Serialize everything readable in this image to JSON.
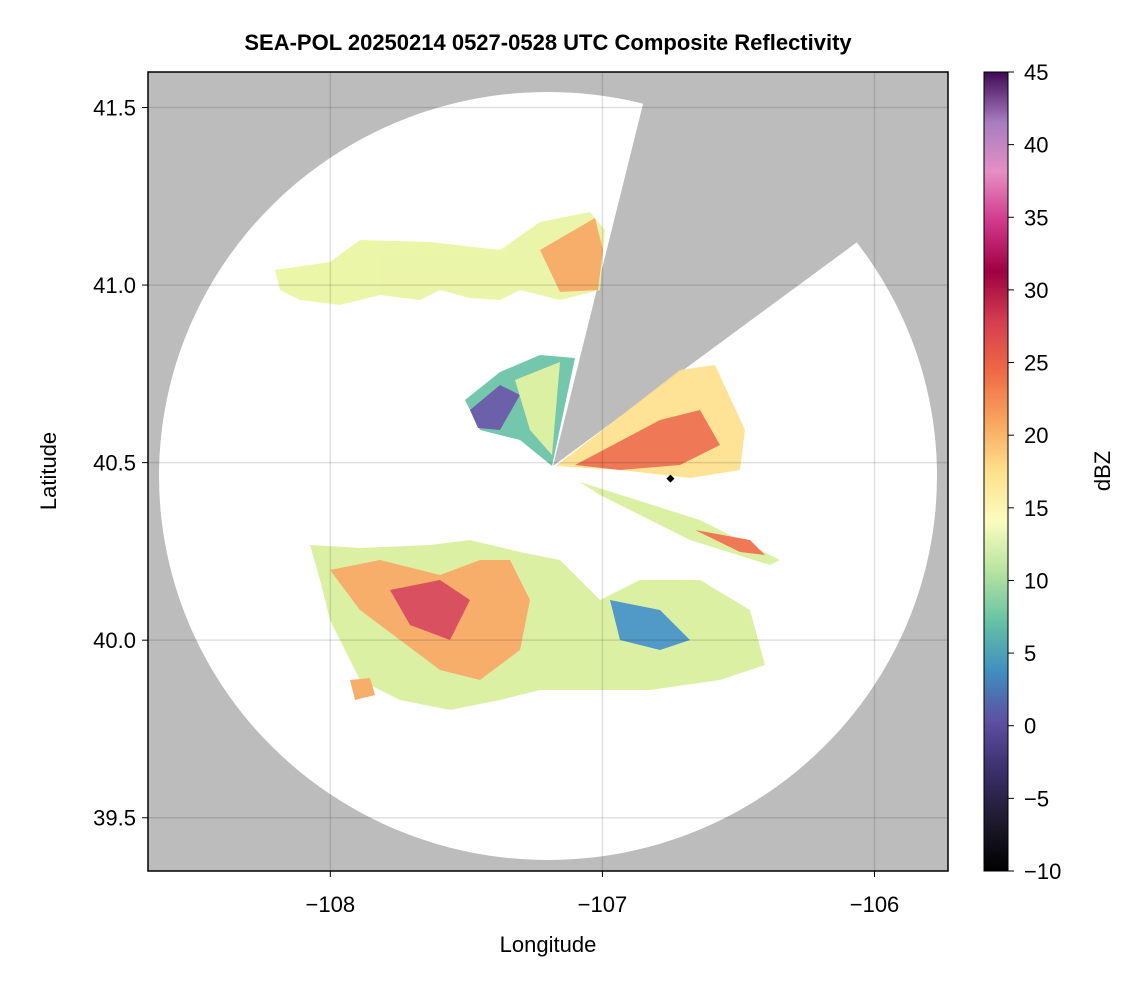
{
  "chart_data": {
    "type": "radar-map",
    "title": "SEA-POL 20250214 0527-0528 UTC Composite Reflectivity",
    "xlabel": "Longitude",
    "ylabel": "Latitude",
    "xlim": [
      -108.67,
      -105.73
    ],
    "ylim": [
      39.35,
      41.6
    ],
    "xticks": [
      {
        "value": -108,
        "label": "−108"
      },
      {
        "value": -107,
        "label": "−107"
      },
      {
        "value": -106,
        "label": "−106"
      }
    ],
    "yticks": [
      {
        "value": 39.5,
        "label": "39.5"
      },
      {
        "value": 40,
        "label": "40.0"
      },
      {
        "value": 40.5,
        "label": "40.5"
      },
      {
        "value": 41,
        "label": "41.0"
      },
      {
        "value": 41.5,
        "label": "41.5"
      }
    ],
    "grid": true,
    "background_color": "#bcbcbc",
    "markers": [
      {
        "x": -106.75,
        "y": 40.455,
        "color": "#000000"
      }
    ],
    "colorbar": {
      "label": "dBZ",
      "clim": [
        -10,
        45
      ],
      "ticks": [
        {
          "value": -10,
          "label": "−10"
        },
        {
          "value": -5,
          "label": "−5"
        },
        0,
        5,
        10,
        15,
        20,
        25,
        30,
        35,
        40,
        45
      ],
      "colors": [
        "#000000",
        "#1e1a2e",
        "#3b2f6b",
        "#5e4fa2",
        "#3f8fc0",
        "#66c2a5",
        "#b7e3a0",
        "#fbfcbf",
        "#fee08b",
        "#f7a65c",
        "#ee6a44",
        "#d53e4f",
        "#9e0142",
        "#d0388a",
        "#e58fc4",
        "#a77cc0",
        "#3f0a55"
      ]
    }
  }
}
